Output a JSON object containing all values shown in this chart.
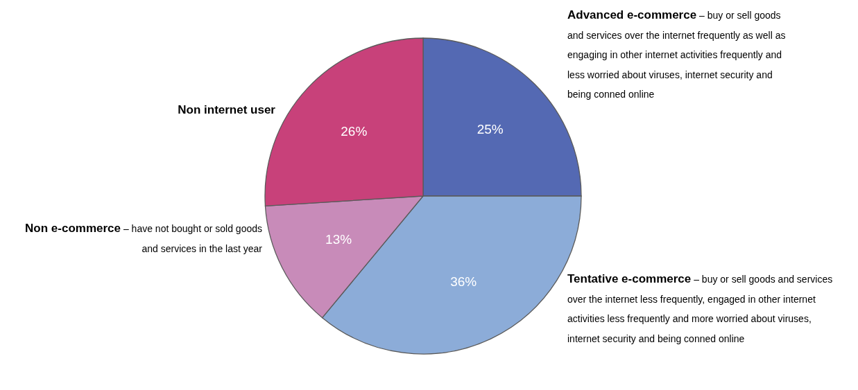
{
  "chart_data": {
    "type": "pie",
    "categories": [
      "Advanced e-commerce – buy or sell goods and services over the internet frequently as well as engaging in other internet activities frequently and less worried about viruses, internet security and being conned online",
      "Tentative e-commerce – buy or sell goods and services over the internet less frequently, engaged in other internet activities less frequently and more worried about viruses, internet security and being conned online",
      "Non e-commerce – have not bought or sold goods and services in the last year",
      "Non internet user"
    ],
    "values": [
      25,
      36,
      13,
      26
    ],
    "colors": [
      "#5469b3",
      "#8cacd8",
      "#c88bb9",
      "#c8417a"
    ],
    "value_labels": [
      "25%",
      "36%",
      "13%",
      "26%"
    ]
  }
}
